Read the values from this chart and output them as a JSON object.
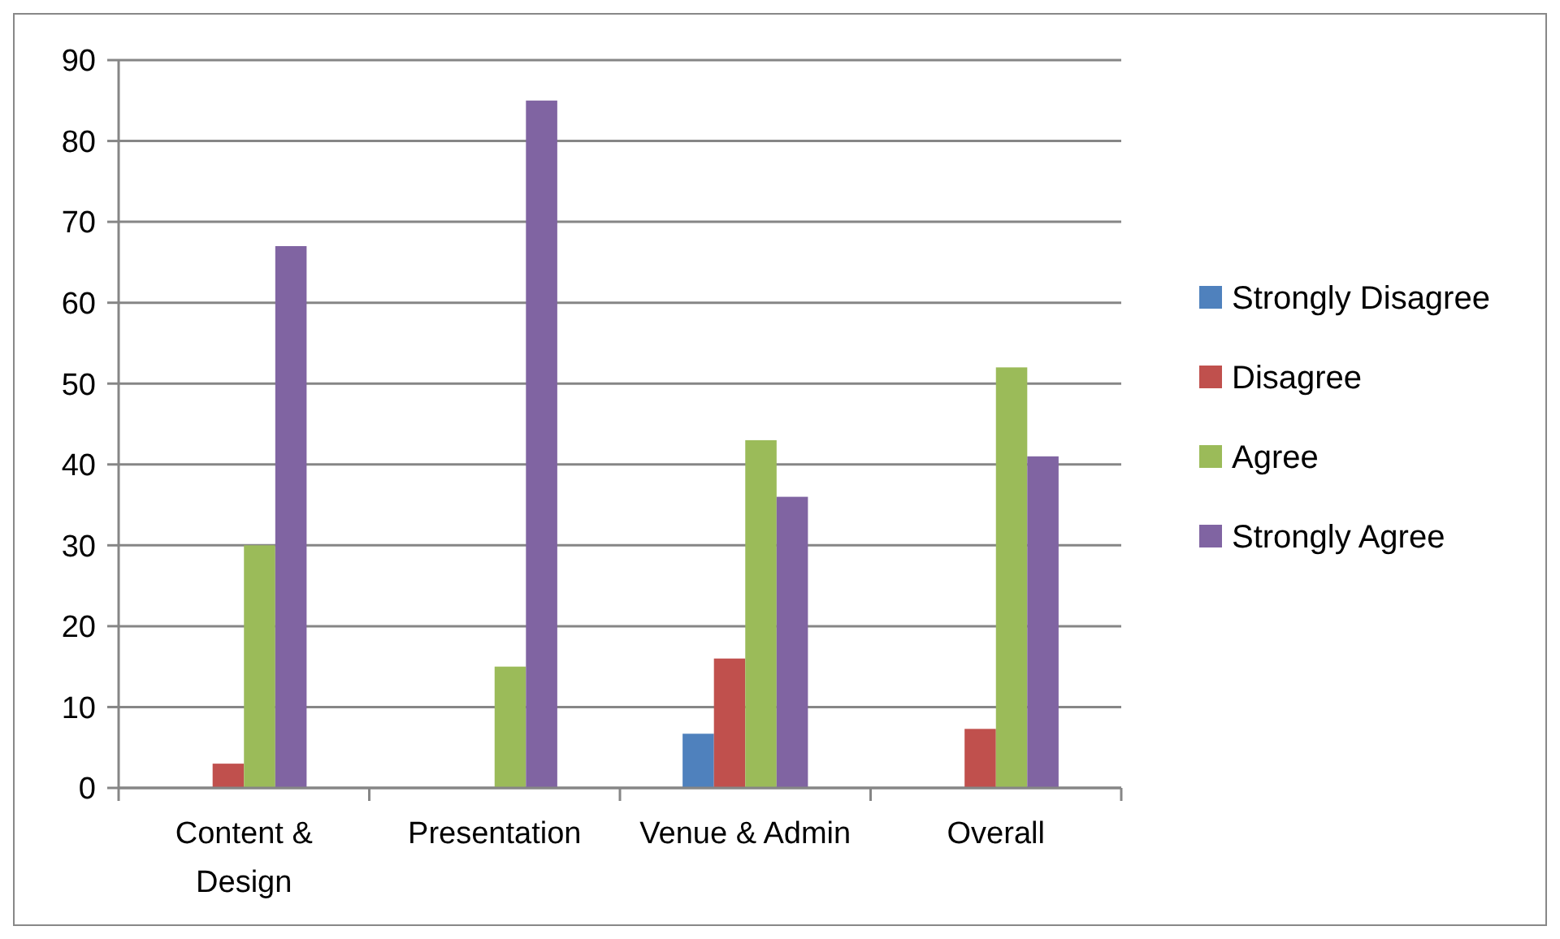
{
  "chart_data": {
    "type": "bar",
    "categories": [
      "Content & Design",
      "Presentation",
      "Venue & Admin",
      "Overall"
    ],
    "series": [
      {
        "name": "Strongly Disagree",
        "color": "#4f81bd",
        "values": [
          null,
          null,
          6.7,
          null
        ]
      },
      {
        "name": "Disagree",
        "color": "#c0504d",
        "values": [
          3,
          null,
          16,
          7.3
        ]
      },
      {
        "name": "Agree",
        "color": "#9bbb59",
        "values": [
          30,
          15,
          43,
          52
        ]
      },
      {
        "name": "Strongly Agree",
        "color": "#8064a2",
        "values": [
          67,
          85,
          36,
          41
        ]
      }
    ],
    "ylim": [
      0,
      90
    ],
    "yticks": [
      0,
      10,
      20,
      30,
      40,
      50,
      60,
      70,
      80,
      90
    ],
    "grid": "y",
    "legend": "right"
  }
}
